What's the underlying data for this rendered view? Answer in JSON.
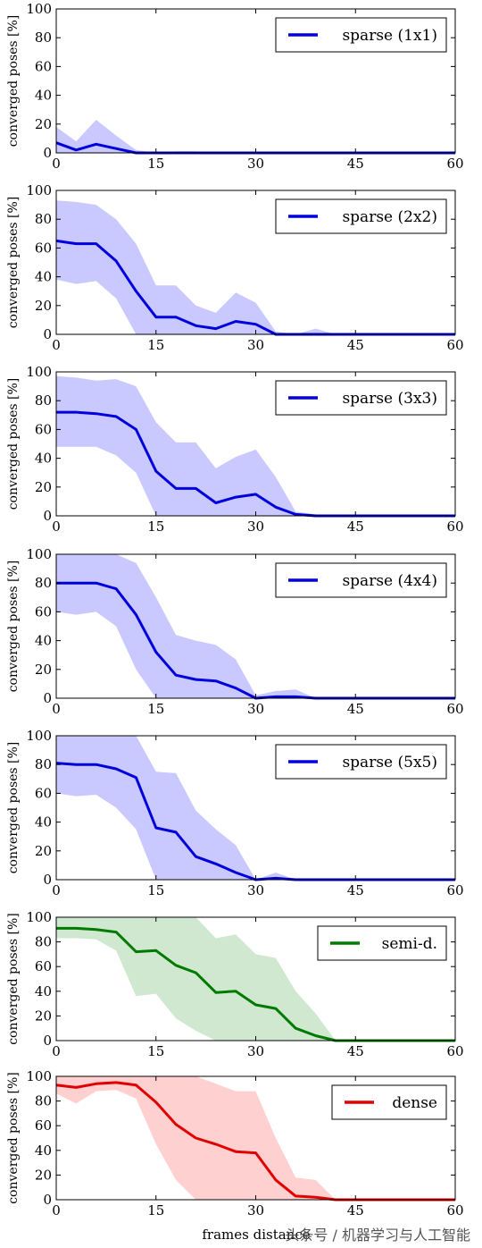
{
  "figure": {
    "xlabel": "frames distance",
    "watermark": "头条号 / 机器学习与人工智能"
  },
  "chart_data": [
    {
      "type": "line",
      "ylabel": "converged poses [%]",
      "xlim": [
        0,
        60
      ],
      "ylim": [
        0,
        100
      ],
      "xticks": [
        0,
        15,
        30,
        45,
        60
      ],
      "yticks": [
        0,
        20,
        40,
        60,
        80,
        100
      ],
      "legend_position": "top-right",
      "series": [
        {
          "name": "sparse (1x1)",
          "color": "#0000dd",
          "band_color": "#c9c9ff",
          "x": [
            0,
            3,
            6,
            9,
            12,
            15,
            18,
            21,
            24,
            27,
            30,
            33,
            36,
            39,
            42,
            45,
            48,
            51,
            54,
            57,
            60
          ],
          "y": [
            7,
            2,
            6,
            3,
            0,
            0,
            0,
            0,
            0,
            0,
            0,
            0,
            0,
            0,
            0,
            0,
            0,
            0,
            0,
            0,
            0
          ],
          "lower": [
            0,
            0,
            0,
            0,
            0,
            0,
            0,
            0,
            0,
            0,
            0,
            0,
            0,
            0,
            0,
            0,
            0,
            0,
            0,
            0,
            0
          ],
          "upper": [
            18,
            8,
            23,
            12,
            2,
            0,
            1,
            1,
            0,
            0,
            0,
            0,
            0,
            0,
            0,
            0,
            0,
            0,
            0,
            0,
            0
          ]
        }
      ]
    },
    {
      "type": "line",
      "ylabel": "converged poses [%]",
      "xlim": [
        0,
        60
      ],
      "ylim": [
        0,
        100
      ],
      "xticks": [
        0,
        15,
        30,
        45,
        60
      ],
      "yticks": [
        0,
        20,
        40,
        60,
        80,
        100
      ],
      "legend_position": "top-right",
      "series": [
        {
          "name": "sparse (2x2)",
          "color": "#0000dd",
          "band_color": "#c9c9ff",
          "x": [
            0,
            3,
            6,
            9,
            12,
            15,
            18,
            21,
            24,
            27,
            30,
            33,
            36,
            39,
            42,
            45,
            48,
            51,
            54,
            57,
            60
          ],
          "y": [
            65,
            63,
            63,
            51,
            30,
            12,
            12,
            6,
            4,
            9,
            7,
            0,
            0,
            0,
            0,
            0,
            0,
            0,
            0,
            0,
            0
          ],
          "lower": [
            38,
            35,
            37,
            25,
            0,
            0,
            0,
            0,
            0,
            0,
            0,
            0,
            0,
            0,
            0,
            0,
            0,
            0,
            0,
            0,
            0
          ],
          "upper": [
            93,
            92,
            90,
            80,
            63,
            34,
            34,
            20,
            15,
            29,
            22,
            2,
            0,
            4,
            0,
            0,
            0,
            0,
            0,
            0,
            0
          ]
        }
      ]
    },
    {
      "type": "line",
      "ylabel": "converged poses [%]",
      "xlim": [
        0,
        60
      ],
      "ylim": [
        0,
        100
      ],
      "xticks": [
        0,
        15,
        30,
        45,
        60
      ],
      "yticks": [
        0,
        20,
        40,
        60,
        80,
        100
      ],
      "legend_position": "top-right",
      "series": [
        {
          "name": "sparse (3x3)",
          "color": "#0000dd",
          "band_color": "#c9c9ff",
          "x": [
            0,
            3,
            6,
            9,
            12,
            15,
            18,
            21,
            24,
            27,
            30,
            33,
            36,
            39,
            42,
            45,
            48,
            51,
            54,
            57,
            60
          ],
          "y": [
            72,
            72,
            71,
            69,
            60,
            31,
            19,
            19,
            9,
            13,
            15,
            6,
            1,
            0,
            0,
            0,
            0,
            0,
            0,
            0,
            0
          ],
          "lower": [
            48,
            48,
            48,
            42,
            30,
            0,
            0,
            0,
            0,
            0,
            0,
            0,
            0,
            0,
            0,
            0,
            0,
            0,
            0,
            0,
            0
          ],
          "upper": [
            97,
            96,
            94,
            95,
            90,
            65,
            51,
            51,
            33,
            41,
            46,
            27,
            3,
            1,
            0,
            0,
            0,
            0,
            0,
            0,
            0
          ]
        }
      ]
    },
    {
      "type": "line",
      "ylabel": "converged poses [%]",
      "xlim": [
        0,
        60
      ],
      "ylim": [
        0,
        100
      ],
      "xticks": [
        0,
        15,
        30,
        45,
        60
      ],
      "yticks": [
        0,
        20,
        40,
        60,
        80,
        100
      ],
      "legend_position": "top-right",
      "series": [
        {
          "name": "sparse (4x4)",
          "color": "#0000dd",
          "band_color": "#c9c9ff",
          "x": [
            0,
            3,
            6,
            9,
            12,
            15,
            18,
            21,
            24,
            27,
            30,
            33,
            36,
            39,
            42,
            45,
            48,
            51,
            54,
            57,
            60
          ],
          "y": [
            80,
            80,
            80,
            76,
            58,
            32,
            16,
            13,
            12,
            7,
            0,
            1,
            1,
            0,
            0,
            0,
            0,
            0,
            0,
            0,
            0
          ],
          "lower": [
            60,
            58,
            60,
            50,
            20,
            0,
            0,
            0,
            0,
            0,
            0,
            0,
            0,
            0,
            0,
            0,
            0,
            0,
            0,
            0,
            0
          ],
          "upper": [
            100,
            100,
            100,
            100,
            94,
            70,
            44,
            40,
            37,
            27,
            2,
            5,
            6,
            0,
            0,
            0,
            0,
            0,
            0,
            0,
            0
          ]
        }
      ]
    },
    {
      "type": "line",
      "ylabel": "converged poses [%]",
      "xlim": [
        0,
        60
      ],
      "ylim": [
        0,
        100
      ],
      "xticks": [
        0,
        15,
        30,
        45,
        60
      ],
      "yticks": [
        0,
        20,
        40,
        60,
        80,
        100
      ],
      "legend_position": "top-right",
      "series": [
        {
          "name": "sparse (5x5)",
          "color": "#0000dd",
          "band_color": "#c9c9ff",
          "x": [
            0,
            3,
            6,
            9,
            12,
            15,
            18,
            21,
            24,
            27,
            30,
            33,
            36,
            39,
            42,
            45,
            48,
            51,
            54,
            57,
            60
          ],
          "y": [
            81,
            80,
            80,
            77,
            71,
            36,
            33,
            16,
            11,
            5,
            0,
            1,
            0,
            0,
            0,
            0,
            0,
            0,
            0,
            0,
            0
          ],
          "lower": [
            60,
            58,
            59,
            50,
            35,
            0,
            0,
            0,
            0,
            0,
            0,
            0,
            0,
            0,
            0,
            0,
            0,
            0,
            0,
            0,
            0
          ],
          "upper": [
            100,
            100,
            100,
            100,
            100,
            75,
            74,
            48,
            35,
            24,
            0,
            5,
            0,
            0,
            0,
            0,
            0,
            0,
            0,
            0,
            0
          ]
        }
      ]
    },
    {
      "type": "line",
      "ylabel": "converged poses [%]",
      "xlim": [
        0,
        60
      ],
      "ylim": [
        0,
        100
      ],
      "xticks": [
        0,
        15,
        30,
        45,
        60
      ],
      "yticks": [
        0,
        20,
        40,
        60,
        80,
        100
      ],
      "legend_position": "top-right",
      "series": [
        {
          "name": "semi-d.",
          "color": "#007a00",
          "band_color": "#cfe8cf",
          "x": [
            0,
            3,
            6,
            9,
            12,
            15,
            18,
            21,
            24,
            27,
            30,
            33,
            36,
            39,
            42,
            45,
            48,
            51,
            54,
            57,
            60
          ],
          "y": [
            91,
            91,
            90,
            88,
            72,
            73,
            61,
            55,
            39,
            40,
            29,
            26,
            10,
            4,
            0,
            0,
            0,
            0,
            0,
            0,
            0
          ],
          "lower": [
            83,
            83,
            82,
            73,
            36,
            38,
            18,
            8,
            0,
            0,
            0,
            0,
            0,
            0,
            0,
            0,
            0,
            0,
            0,
            0,
            0
          ],
          "upper": [
            100,
            100,
            100,
            100,
            100,
            100,
            100,
            100,
            83,
            86,
            70,
            67,
            40,
            22,
            0,
            0,
            0,
            0,
            0,
            0,
            0
          ]
        }
      ]
    },
    {
      "type": "line",
      "ylabel": "converged poses [%]",
      "xlim": [
        0,
        60
      ],
      "ylim": [
        0,
        100
      ],
      "xticks": [
        0,
        15,
        30,
        45,
        60
      ],
      "yticks": [
        0,
        20,
        40,
        60,
        80,
        100
      ],
      "legend_position": "top-right",
      "series": [
        {
          "name": "dense",
          "color": "#e00000",
          "band_color": "#ffd0d0",
          "x": [
            0,
            3,
            6,
            9,
            12,
            15,
            18,
            21,
            24,
            27,
            30,
            33,
            36,
            39,
            42,
            45,
            48,
            51,
            54,
            57,
            60
          ],
          "y": [
            93,
            91,
            94,
            95,
            93,
            79,
            61,
            50,
            45,
            39,
            38,
            16,
            3,
            2,
            0,
            0,
            0,
            0,
            0,
            0,
            0
          ],
          "lower": [
            86,
            78,
            88,
            89,
            82,
            45,
            16,
            0,
            0,
            0,
            0,
            0,
            0,
            0,
            0,
            0,
            0,
            0,
            0,
            0,
            0
          ],
          "upper": [
            100,
            100,
            100,
            100,
            100,
            100,
            100,
            100,
            94,
            88,
            88,
            50,
            18,
            16,
            0,
            0,
            0,
            0,
            0,
            0,
            0
          ]
        }
      ]
    }
  ]
}
